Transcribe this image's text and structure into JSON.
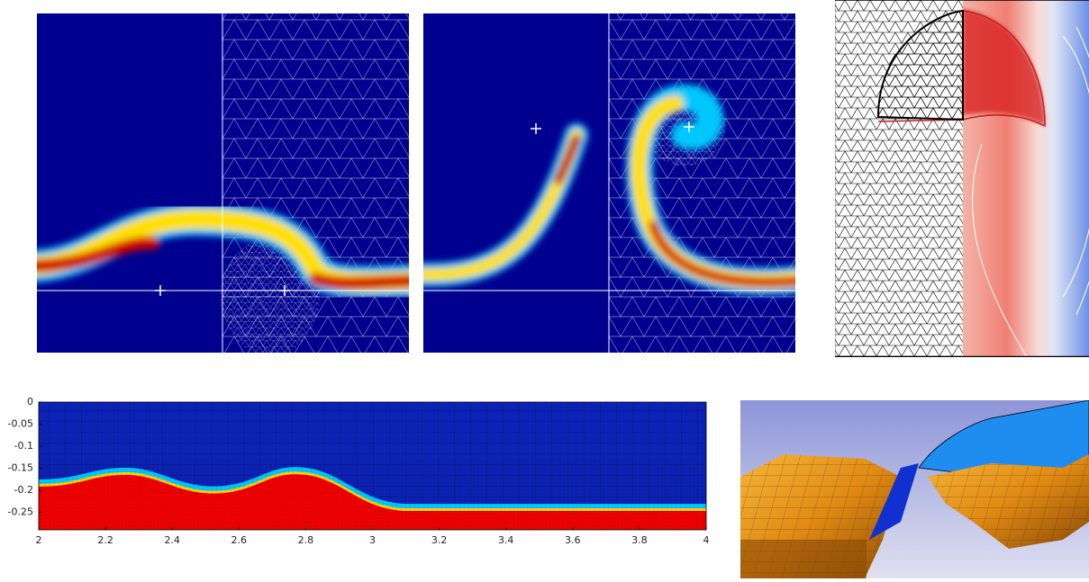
{
  "bottom_plot": {
    "xlim": [
      2,
      4
    ],
    "ylim": [
      -0.29,
      0
    ],
    "xticks": [
      2,
      2.2,
      2.4,
      2.6,
      2.8,
      3,
      3.2,
      3.4,
      3.6,
      3.8,
      4
    ],
    "yticks": [
      0,
      -0.05,
      -0.1,
      -0.15,
      -0.2,
      -0.25
    ]
  }
}
